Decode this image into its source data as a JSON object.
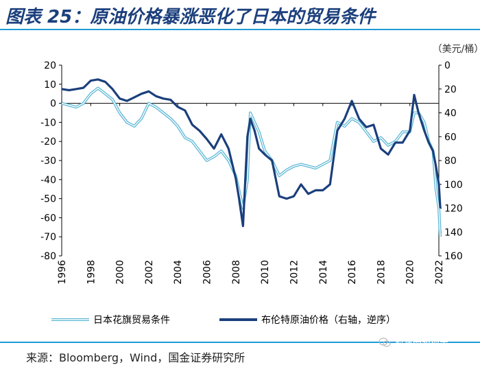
{
  "header": {
    "title": "图表 25：原油价格暴涨恶化了日本的贸易条件"
  },
  "footer": {
    "source": "来源：Bloomberg，Wind，国金证券研究所",
    "watermark": "赵伟宏观探索"
  },
  "chart_data": {
    "type": "line",
    "unit_right": "（美元/桶）",
    "x_ticks": [
      "1996",
      "1998",
      "2000",
      "2002",
      "2004",
      "2006",
      "2008",
      "2010",
      "2012",
      "2014",
      "2016",
      "2018",
      "2020",
      "2022"
    ],
    "y_left": {
      "min": -80,
      "max": 20,
      "ticks": [
        "20",
        "10",
        "0",
        "-10",
        "-20",
        "-30",
        "-40",
        "-50",
        "-60",
        "-70",
        "-80"
      ]
    },
    "y_right": {
      "min": 0,
      "max": 160,
      "inverted": true,
      "ticks": [
        "0",
        "20",
        "40",
        "60",
        "80",
        "100",
        "120",
        "140",
        "160"
      ]
    },
    "legend": [
      "日本花旗贸易条件",
      "布伦特原油价格（右轴，逆序）"
    ],
    "colors": {
      "terms": "#5db8d6",
      "brent": "#1b3f7c"
    },
    "series": [
      {
        "name": "日本花旗贸易条件",
        "axis": "left",
        "x": [
          1996,
          1996.5,
          1997,
          1997.5,
          1998,
          1998.5,
          1999,
          1999.5,
          2000,
          2000.5,
          2001,
          2001.5,
          2002,
          2002.5,
          2003,
          2003.5,
          2004,
          2004.5,
          2005,
          2005.5,
          2006,
          2006.5,
          2007,
          2007.5,
          2008,
          2008.2,
          2008.5,
          2008.8,
          2009,
          2009.3,
          2009.6,
          2010,
          2010.5,
          2011,
          2011.5,
          2012,
          2012.5,
          2013,
          2013.5,
          2014,
          2014.5,
          2015,
          2015.5,
          2016,
          2016.5,
          2017,
          2017.5,
          2018,
          2018.5,
          2019,
          2019.5,
          2020,
          2020.3,
          2020.6,
          2021,
          2021.3,
          2021.6,
          2021.8,
          2022,
          2022.1
        ],
        "y": [
          0,
          -1,
          -2,
          0,
          5,
          8,
          5,
          2,
          -5,
          -10,
          -12,
          -8,
          0,
          -2,
          -5,
          -8,
          -12,
          -18,
          -20,
          -25,
          -30,
          -28,
          -25,
          -30,
          -38,
          -45,
          -55,
          -40,
          -5,
          -10,
          -15,
          -25,
          -30,
          -38,
          -35,
          -33,
          -32,
          -33,
          -34,
          -32,
          -30,
          -10,
          -12,
          -8,
          -10,
          -15,
          -20,
          -18,
          -22,
          -20,
          -15,
          -15,
          -5,
          -5,
          -10,
          -20,
          -25,
          -45,
          -55,
          -70
        ]
      },
      {
        "name": "布伦特原油价格（右轴，逆序）",
        "axis": "right",
        "x": [
          1996,
          1996.5,
          1997,
          1997.5,
          1998,
          1998.5,
          1999,
          1999.5,
          2000,
          2000.5,
          2001,
          2001.5,
          2002,
          2002.5,
          2003,
          2003.5,
          2004,
          2004.5,
          2005,
          2005.5,
          2006,
          2006.5,
          2007,
          2007.5,
          2008,
          2008.2,
          2008.5,
          2008.8,
          2009,
          2009.3,
          2009.6,
          2010,
          2010.5,
          2011,
          2011.5,
          2012,
          2012.5,
          2013,
          2013.5,
          2014,
          2014.5,
          2015,
          2015.5,
          2016,
          2016.5,
          2017,
          2017.5,
          2018,
          2018.5,
          2019,
          2019.5,
          2020,
          2020.3,
          2020.6,
          2021,
          2021.3,
          2021.6,
          2021.8,
          2022,
          2022.1
        ],
        "y": [
          20,
          21,
          20,
          19,
          13,
          12,
          14,
          20,
          28,
          30,
          27,
          24,
          22,
          26,
          28,
          29,
          35,
          38,
          50,
          55,
          62,
          70,
          58,
          70,
          95,
          110,
          135,
          60,
          45,
          55,
          70,
          75,
          80,
          110,
          112,
          110,
          100,
          108,
          105,
          105,
          100,
          55,
          45,
          30,
          45,
          52,
          50,
          70,
          75,
          65,
          65,
          55,
          25,
          40,
          55,
          65,
          72,
          85,
          100,
          120
        ]
      }
    ]
  }
}
